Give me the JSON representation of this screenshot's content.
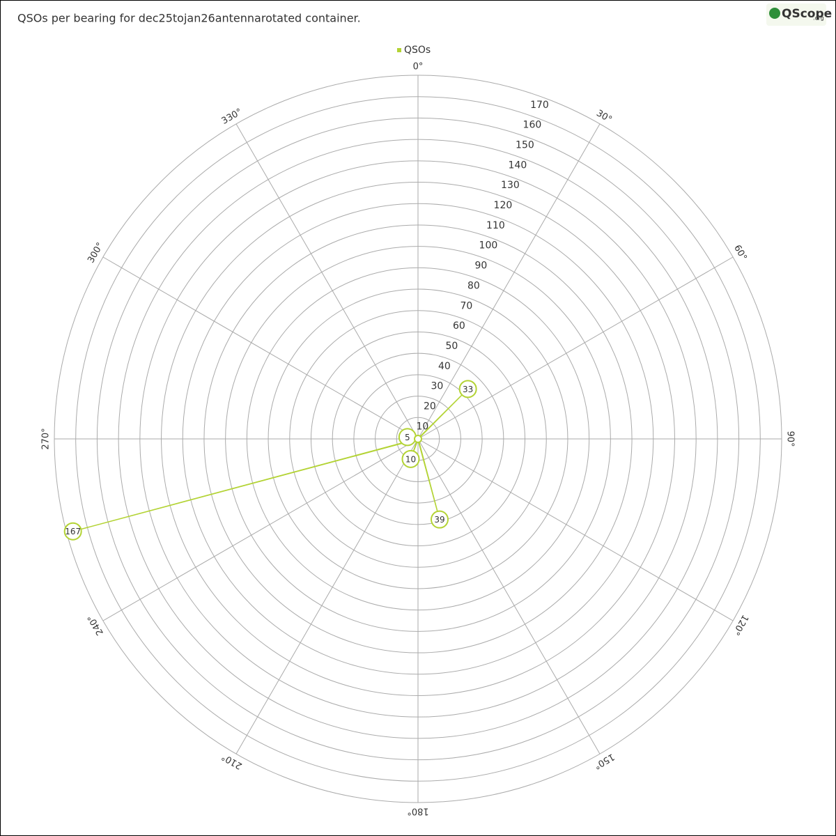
{
  "chart_data": {
    "type": "polar",
    "title": "QSOs per bearing for dec25tojan26antennarotated container.",
    "logo": "QScope",
    "logo_suffix": ".org",
    "series": [
      {
        "name": "QSOs",
        "color": "#b3d334",
        "theta": [
          45,
          165,
          200,
          255,
          280
        ],
        "values": [
          33,
          39,
          10,
          167,
          5
        ]
      }
    ],
    "rlim": [
      0,
      170
    ],
    "rticks": [
      10,
      20,
      30,
      40,
      50,
      60,
      70,
      80,
      90,
      100,
      110,
      120,
      130,
      140,
      150,
      160,
      170
    ],
    "thetaticks": [
      {
        "value": 0,
        "label": "0°"
      },
      {
        "value": 30,
        "label": "30°"
      },
      {
        "value": 60,
        "label": "60°"
      },
      {
        "value": 90,
        "label": "90°"
      },
      {
        "value": 120,
        "label": "120°"
      },
      {
        "value": 150,
        "label": "150°"
      },
      {
        "value": 180,
        "label": "180°"
      },
      {
        "value": 210,
        "label": "210°"
      },
      {
        "value": 240,
        "label": "240°"
      },
      {
        "value": 270,
        "label": "270°"
      },
      {
        "value": 300,
        "label": "300°"
      },
      {
        "value": 330,
        "label": "330°"
      }
    ],
    "grid": true,
    "legend": "top"
  }
}
